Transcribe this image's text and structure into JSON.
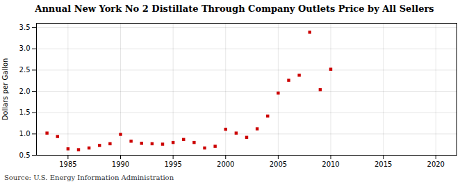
{
  "chart_data": {
    "type": "scatter",
    "title": "Annual New York No 2 Distillate Through Company Outlets Price by All Sellers",
    "ylabel": "Dollars per Gallon",
    "caption": "Source: U.S. Energy Information Administration",
    "x": [
      1983,
      1984,
      1985,
      1986,
      1987,
      1988,
      1989,
      1990,
      1991,
      1992,
      1993,
      1994,
      1995,
      1996,
      1997,
      1998,
      1999,
      2000,
      2001,
      2002,
      2003,
      2004,
      2005,
      2006,
      2007,
      2008,
      2009,
      2010
    ],
    "values": [
      1.02,
      0.94,
      0.65,
      0.63,
      0.67,
      0.73,
      0.77,
      0.99,
      0.83,
      0.78,
      0.77,
      0.76,
      0.8,
      0.87,
      0.8,
      0.67,
      0.71,
      1.11,
      1.02,
      0.92,
      1.12,
      1.42,
      1.96,
      2.26,
      2.38,
      3.39,
      2.04,
      2.52
    ],
    "color": "#cc0000",
    "marker": "square",
    "xlim": [
      1982,
      2022
    ],
    "xticks": [
      1985,
      1990,
      1995,
      2000,
      2005,
      2010,
      2015,
      2020
    ],
    "ylim": [
      0.5,
      3.6
    ],
    "yticks": [
      0.5,
      {
        "value": 1,
        "label": "1.0"
      },
      1.5,
      {
        "value": 2,
        "label": "2.0"
      },
      2.5,
      {
        "value": 3,
        "label": "3.0"
      },
      3.5
    ],
    "grid": true
  }
}
